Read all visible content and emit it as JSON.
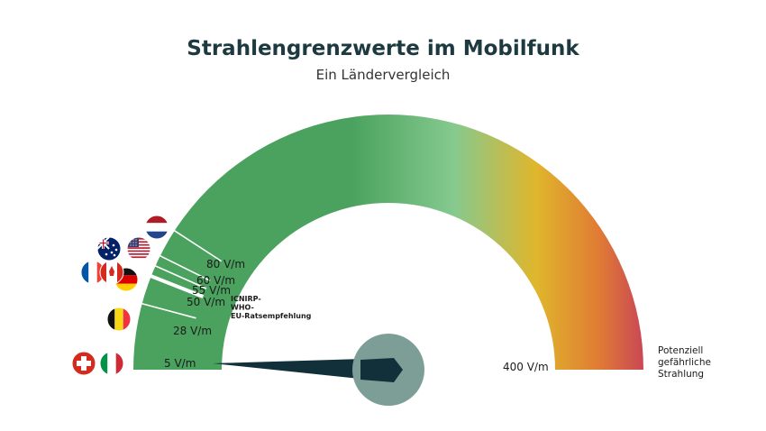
{
  "chart_data": {
    "type": "gauge",
    "title": "Strahlengrenzwerte im Mobilfunk",
    "subtitle": "Ein Ländervergleich",
    "scale_min": 5,
    "scale_max": 400,
    "end_label": "400 V/m",
    "end_note": [
      "Potenziell",
      "gefährliche",
      "Strahlung"
    ],
    "needle_value": 5,
    "colors": {
      "green": "#4aa25e",
      "light_green": "#85c98f",
      "yellow": "#e0b62c",
      "orange": "#e07d33",
      "red": "#c7415a",
      "hub": "#7d9e96",
      "needle": "#12303a"
    },
    "markers": [
      {
        "label": "5 V/m",
        "value": 5,
        "flags": [
          "switzerland",
          "italy"
        ]
      },
      {
        "label": "28 V/m",
        "value": 28,
        "flags": [
          "belgium"
        ]
      },
      {
        "label": "50 V/m",
        "value": 50,
        "flags": [],
        "note": [
          "ICNIRP-",
          "WHO-",
          "EU-Ratsempfehlung"
        ]
      },
      {
        "label": "55 V/m",
        "value": 55,
        "flags": [
          "germany"
        ]
      },
      {
        "label": "60 V/m",
        "value": 60,
        "flags": [
          "france",
          "canada"
        ]
      },
      {
        "label": "80 V/m",
        "value": 80,
        "flags": [
          "australia",
          "usa"
        ]
      },
      {
        "label": "",
        "value": 90,
        "flags": [
          "netherlands"
        ]
      }
    ]
  }
}
